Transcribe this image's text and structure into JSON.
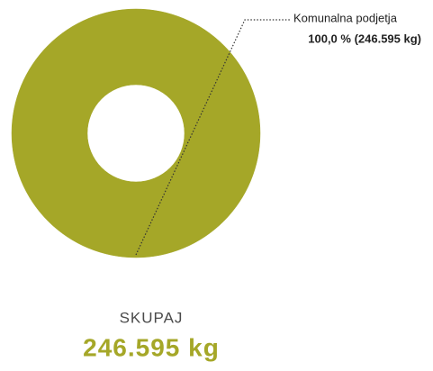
{
  "chart_data": {
    "type": "donut",
    "categories": [
      "Komunalna podjetja"
    ],
    "values": [
      100
    ],
    "value_labels": [
      "100,0 % (246.595 kg)"
    ],
    "colors": [
      "#a5a728"
    ],
    "total_title": "SKUPAJ",
    "total_label": "246.595 kg"
  }
}
